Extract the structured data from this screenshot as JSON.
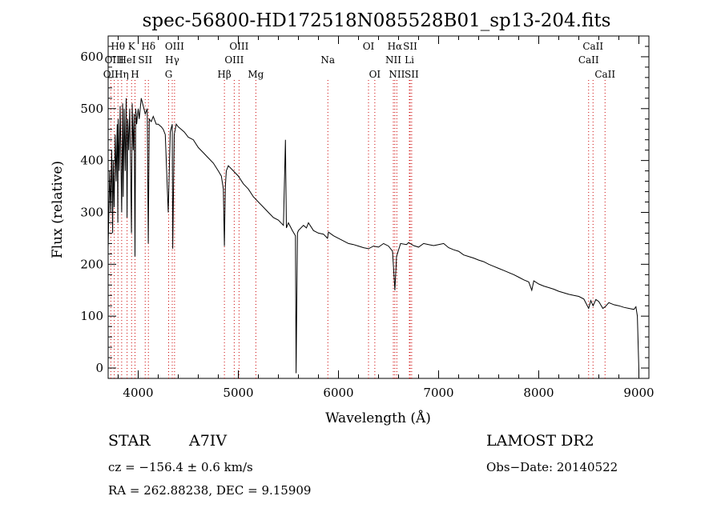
{
  "chart_data": {
    "type": "line",
    "title": "spec-56800-HD172518N085528B01_sp13-204.fits",
    "xlabel": "Wavelength (Å)",
    "ylabel": "Flux (relative)",
    "xlim": [
      3700,
      9100
    ],
    "ylim": [
      -20,
      640
    ],
    "xticks": [
      4000,
      5000,
      6000,
      7000,
      8000,
      9000
    ],
    "yticks": [
      0,
      100,
      200,
      300,
      400,
      500,
      600
    ],
    "grid": false,
    "series": [
      {
        "color": "#000000",
        "x": [
          3700,
          3715,
          3725,
          3735,
          3745,
          3750,
          3760,
          3770,
          3780,
          3790,
          3797,
          3800,
          3810,
          3820,
          3835,
          3845,
          3850,
          3860,
          3870,
          3880,
          3889,
          3895,
          3905,
          3915,
          3925,
          3933,
          3940,
          3950,
          3960,
          3968,
          3975,
          3985,
          4000,
          4010,
          4030,
          4050,
          4070,
          4090,
          4101,
          4110,
          4130,
          4150,
          4180,
          4200,
          4230,
          4250,
          4270,
          4300,
          4320,
          4340,
          4345,
          4360,
          4380,
          4400,
          4430,
          4460,
          4480,
          4500,
          4550,
          4600,
          4650,
          4700,
          4750,
          4800,
          4830,
          4850,
          4861,
          4870,
          4880,
          4900,
          4950,
          5000,
          5050,
          5100,
          5150,
          5200,
          5250,
          5300,
          5350,
          5400,
          5450,
          5470,
          5480,
          5500,
          5540,
          5570,
          5577,
          5590,
          5600,
          5650,
          5680,
          5700,
          5750,
          5800,
          5850,
          5890,
          5900,
          5950,
          6000,
          6050,
          6100,
          6150,
          6200,
          6250,
          6300,
          6350,
          6400,
          6450,
          6500,
          6540,
          6563,
          6580,
          6620,
          6680,
          6700,
          6750,
          6800,
          6850,
          6900,
          6950,
          7000,
          7050,
          7100,
          7150,
          7200,
          7250,
          7300,
          7350,
          7400,
          7450,
          7500,
          7550,
          7600,
          7650,
          7700,
          7750,
          7800,
          7850,
          7900,
          7930,
          7950,
          8000,
          8050,
          8100,
          8150,
          8200,
          8250,
          8300,
          8350,
          8400,
          8450,
          8498,
          8520,
          8542,
          8570,
          8600,
          8640,
          8662,
          8700,
          8750,
          8800,
          8850,
          8900,
          8950,
          8970,
          8985,
          9000
        ],
        "y": [
          230,
          380,
          300,
          420,
          260,
          400,
          310,
          450,
          360,
          470,
          280,
          480,
          380,
          505,
          300,
          510,
          330,
          500,
          380,
          520,
          290,
          480,
          420,
          500,
          380,
          260,
          510,
          420,
          490,
          215,
          500,
          470,
          500,
          480,
          520,
          505,
          490,
          500,
          240,
          480,
          475,
          485,
          470,
          470,
          465,
          460,
          450,
          300,
          455,
          470,
          230,
          450,
          470,
          465,
          460,
          455,
          450,
          445,
          440,
          425,
          415,
          405,
          395,
          380,
          370,
          345,
          235,
          350,
          380,
          390,
          380,
          370,
          355,
          345,
          330,
          320,
          310,
          300,
          290,
          285,
          275,
          440,
          270,
          280,
          265,
          255,
          -10,
          260,
          265,
          275,
          270,
          280,
          265,
          260,
          258,
          250,
          262,
          255,
          250,
          245,
          240,
          238,
          235,
          232,
          230,
          235,
          233,
          240,
          235,
          225,
          150,
          215,
          240,
          238,
          242,
          236,
          233,
          240,
          238,
          236,
          238,
          240,
          232,
          228,
          225,
          218,
          215,
          212,
          208,
          205,
          200,
          196,
          192,
          188,
          184,
          180,
          175,
          170,
          166,
          150,
          168,
          162,
          158,
          155,
          152,
          148,
          145,
          142,
          140,
          138,
          133,
          115,
          130,
          120,
          132,
          128,
          115,
          118,
          126,
          122,
          120,
          117,
          115,
          113,
          118,
          100,
          -5
        ]
      }
    ],
    "line_markers": [
      {
        "label": "OII",
        "x": 3727,
        "color": "#cc0000",
        "row": 3
      },
      {
        "label": "Hθ",
        "x": 3798,
        "color": "#cc0000",
        "row": 1
      },
      {
        "label": "OIII",
        "x": 3761,
        "color": "#cc0000",
        "row": 2
      },
      {
        "label": "Hη",
        "x": 3835,
        "color": "#cc0000",
        "row": 3
      },
      {
        "label": "HeI",
        "x": 3889,
        "color": "#cc0000",
        "row": 2
      },
      {
        "label": "K",
        "x": 3934,
        "color": "#cc0000",
        "row": 1
      },
      {
        "label": "SII",
        "x": 4070,
        "color": "#cc0000",
        "row": 2
      },
      {
        "label": "H",
        "x": 3968,
        "color": "#cc0000",
        "row": 3
      },
      {
        "label": "Hδ",
        "x": 4102,
        "color": "#cc0000",
        "row": 1
      },
      {
        "label": "OIII",
        "x": 4363,
        "color": "#cc0000",
        "row": 1
      },
      {
        "label": "Hγ",
        "x": 4340,
        "color": "#cc0000",
        "row": 2
      },
      {
        "label": "G",
        "x": 4304,
        "color": "#cc0000",
        "row": 3
      },
      {
        "label": "Hβ",
        "x": 4861,
        "color": "#cc0000",
        "row": 3
      },
      {
        "label": "OIII",
        "x": 5007,
        "color": "#cc0000",
        "row": 1
      },
      {
        "label": "OIII",
        "x": 4959,
        "color": "#cc0000",
        "row": 2
      },
      {
        "label": "Mg",
        "x": 5175,
        "color": "#cc0000",
        "row": 3
      },
      {
        "label": "Na",
        "x": 5894,
        "color": "#cc0000",
        "row": 2
      },
      {
        "label": "OI",
        "x": 6300,
        "color": "#cc0000",
        "row": 1
      },
      {
        "label": "OI",
        "x": 6363,
        "color": "#cc0000",
        "row": 3
      },
      {
        "label": "Hα",
        "x": 6563,
        "color": "#cc0000",
        "row": 1
      },
      {
        "label": "SII",
        "x": 6716,
        "color": "#cc0000",
        "row": 1
      },
      {
        "label": "NII",
        "x": 6548,
        "color": "#cc0000",
        "row": 2
      },
      {
        "label": "Li",
        "x": 6708,
        "color": "#cc0000",
        "row": 2
      },
      {
        "label": "NII",
        "x": 6583,
        "color": "#cc0000",
        "row": 3
      },
      {
        "label": "SII",
        "x": 6731,
        "color": "#cc0000",
        "row": 3
      },
      {
        "label": "CaII",
        "x": 8542,
        "color": "#cc0000",
        "row": 1
      },
      {
        "label": "CaII",
        "x": 8498,
        "color": "#cc0000",
        "row": 2
      },
      {
        "label": "CaII",
        "x": 8662,
        "color": "#cc0000",
        "row": 3
      }
    ]
  },
  "info": {
    "object_class": "STAR",
    "subclass": "A7IV",
    "survey": "LAMOST DR2",
    "redshift": "cz = −156.4 ± 0.6 km/s",
    "obs_date": "Obs−Date: 20140522",
    "coords": "RA = 262.88238, DEC =   9.15909"
  }
}
